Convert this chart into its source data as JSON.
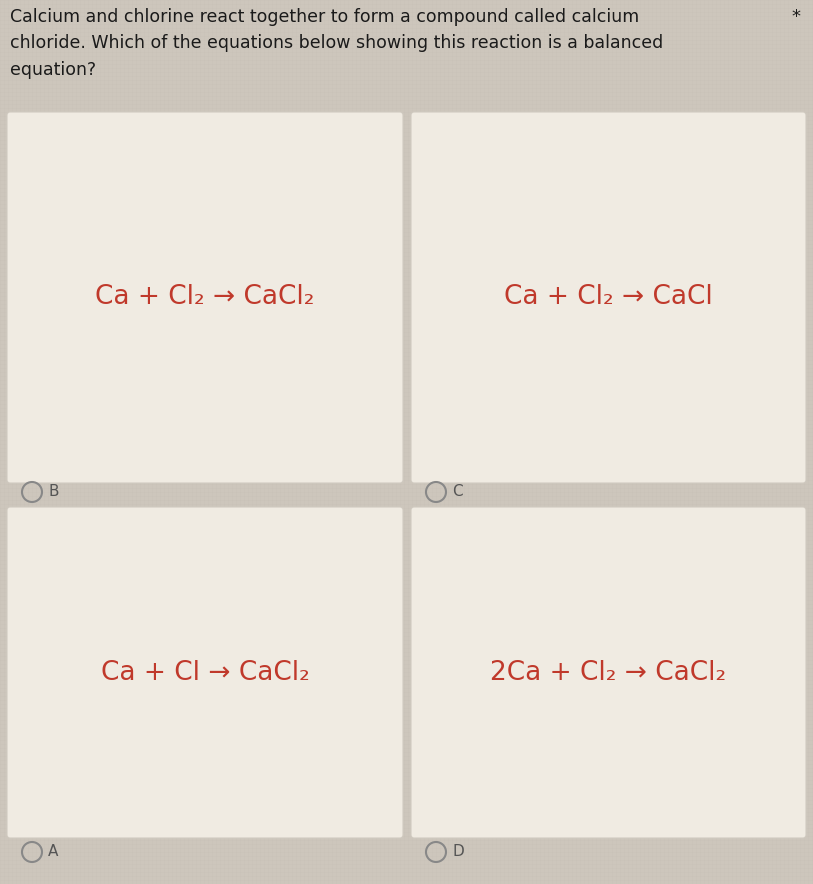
{
  "bg_color_light": "#cdc6bc",
  "bg_color_dark": "#b8b2a8",
  "card_bg": "#f0ebe2",
  "card_border": "#d0cac0",
  "text_color": "#c0392b",
  "question_color": "#1a1a1a",
  "label_color": "#555555",
  "radio_color": "#888888",
  "question": "Calcium and chlorine react together to form a compound called calcium\nchloride. Which of the equations below showing this reaction is a balanced\nequation?",
  "star": "*",
  "equations": [
    "Ca + Cl₂ → CaCl₂",
    "Ca + Cl₂ → CaCl",
    "Ca + Cl → CaCl₂",
    "2Ca + Cl₂ → CaCl₂"
  ],
  "labels": [
    "B",
    "C",
    "A",
    "D"
  ],
  "font_size_eq": 19,
  "font_size_label": 11,
  "font_size_question": 12.5
}
